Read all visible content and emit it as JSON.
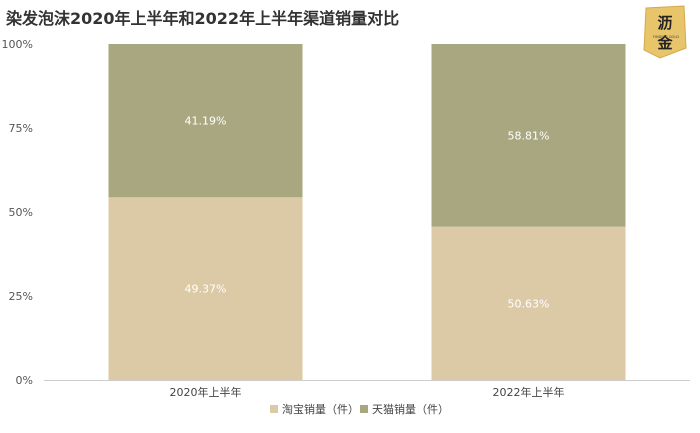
{
  "chart_data": {
    "type": "bar",
    "stacked": true,
    "title": "染发泡沫2020年上半年和2022年上半年渠道销量对比",
    "categories": [
      "2020年上半年",
      "2022年上半年"
    ],
    "series": [
      {
        "name": "淘宝销量（件）",
        "values": [
          0.5437,
          0.4563
        ],
        "labels": [
          "49.37%",
          "50.63%"
        ],
        "color": "#dcc9a6"
      },
      {
        "name": "天猫销量（件）",
        "values": [
          0.4563,
          0.5437
        ],
        "labels": [
          "41.19%",
          "58.81%"
        ],
        "color": "#a9a77f"
      }
    ],
    "yticks": [
      "0%",
      "25%",
      "50%",
      "75%",
      "100%"
    ],
    "ylim": [
      0,
      1
    ],
    "grid": false,
    "legend_position": "bottom"
  },
  "logo": {
    "text": "沥金",
    "subtext": "FINDING GOLD",
    "accent": "#e8c46a"
  },
  "colors": {
    "axis": "#cccccc"
  }
}
